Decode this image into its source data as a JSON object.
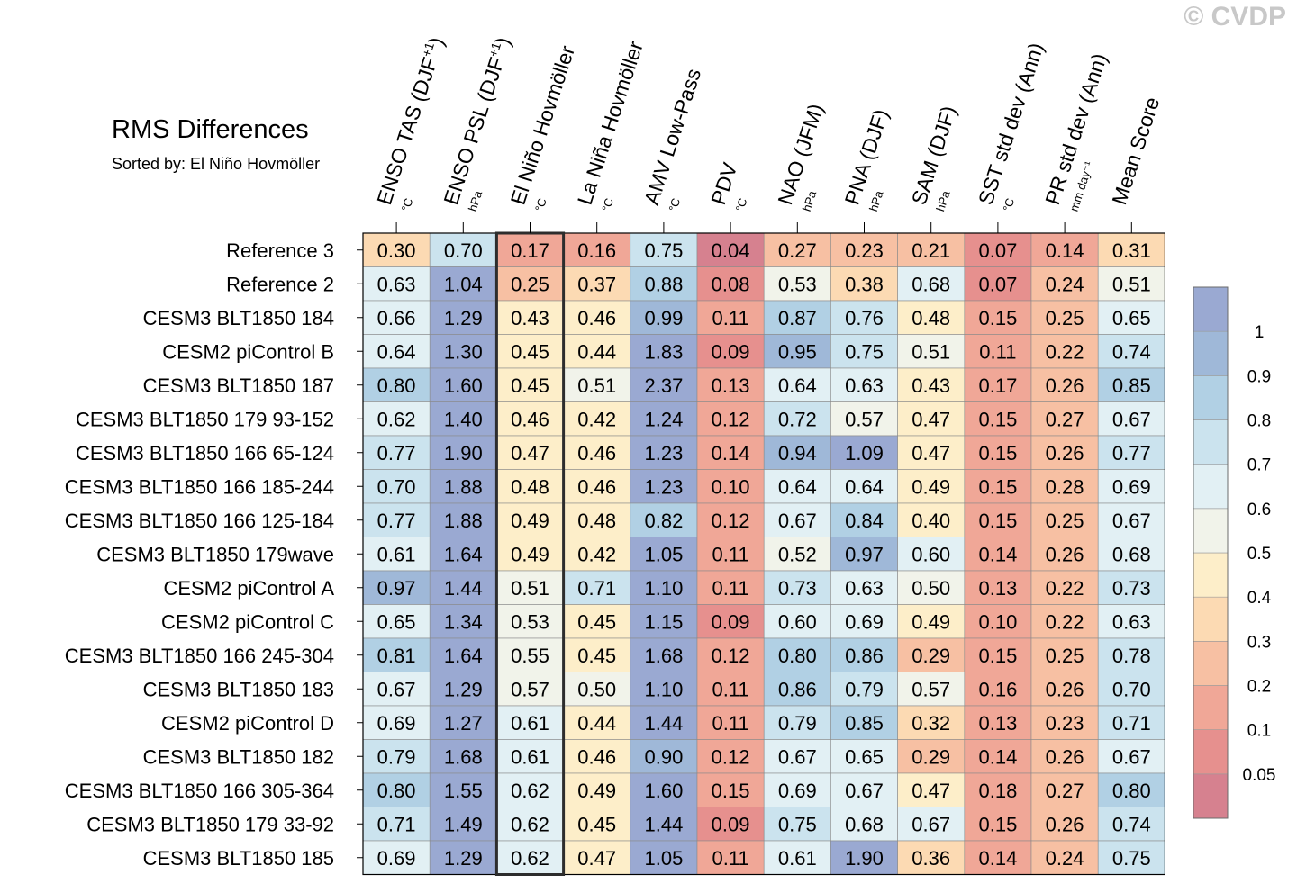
{
  "watermark": "© CVDP",
  "chart_data": {
    "type": "heatmap",
    "title": "RMS Differences",
    "subtitle": "Sorted by: El Niño Hovmöller",
    "highlight_column": 2,
    "columns": [
      {
        "label": "ENSO TAS (DJF",
        "sup": "+1",
        "close": ")",
        "unit": "°C"
      },
      {
        "label": "ENSO PSL (DJF",
        "sup": "+1",
        "close": ")",
        "unit": "hPa"
      },
      {
        "label": "El Niño Hovmöller",
        "sup": "",
        "close": "",
        "unit": "°C"
      },
      {
        "label": "La Niña Hovmöller",
        "sup": "",
        "close": "",
        "unit": "°C"
      },
      {
        "label": "AMV Low-Pass",
        "sup": "",
        "close": "",
        "unit": "°C"
      },
      {
        "label": "PDV",
        "sup": "",
        "close": "",
        "unit": "°C"
      },
      {
        "label": "NAO (JFM)",
        "sup": "",
        "close": "",
        "unit": "hPa"
      },
      {
        "label": "PNA (DJF)",
        "sup": "",
        "close": "",
        "unit": "hPa"
      },
      {
        "label": "SAM (DJF)",
        "sup": "",
        "close": "",
        "unit": "hPa"
      },
      {
        "label": "SST std dev (Ann)",
        "sup": "",
        "close": "",
        "unit": "°C"
      },
      {
        "label": "PR std dev (Ann)",
        "sup": "",
        "close": "",
        "unit": "mm day⁻¹"
      },
      {
        "label": "Mean Score",
        "sup": "",
        "close": "",
        "unit": ""
      }
    ],
    "rows": [
      {
        "name": "Reference 3",
        "values": [
          0.3,
          0.7,
          0.17,
          0.16,
          0.75,
          0.04,
          0.27,
          0.23,
          0.21,
          0.07,
          0.14,
          0.31
        ]
      },
      {
        "name": "Reference 2",
        "values": [
          0.63,
          1.04,
          0.25,
          0.37,
          0.88,
          0.08,
          0.53,
          0.38,
          0.68,
          0.07,
          0.24,
          0.51
        ]
      },
      {
        "name": "CESM3 BLT1850 184",
        "values": [
          0.66,
          1.29,
          0.43,
          0.46,
          0.99,
          0.11,
          0.87,
          0.76,
          0.48,
          0.15,
          0.25,
          0.65
        ]
      },
      {
        "name": "CESM2 piControl B",
        "values": [
          0.64,
          1.3,
          0.45,
          0.44,
          1.83,
          0.09,
          0.95,
          0.75,
          0.51,
          0.11,
          0.22,
          0.74
        ]
      },
      {
        "name": "CESM3 BLT1850 187",
        "values": [
          0.8,
          1.6,
          0.45,
          0.51,
          2.37,
          0.13,
          0.64,
          0.63,
          0.43,
          0.17,
          0.26,
          0.85
        ]
      },
      {
        "name": "CESM3 BLT1850 179 93-152",
        "values": [
          0.62,
          1.4,
          0.46,
          0.42,
          1.24,
          0.12,
          0.72,
          0.57,
          0.47,
          0.15,
          0.27,
          0.67
        ]
      },
      {
        "name": "CESM3 BLT1850 166 65-124",
        "values": [
          0.77,
          1.9,
          0.47,
          0.46,
          1.23,
          0.14,
          0.94,
          1.09,
          0.47,
          0.15,
          0.26,
          0.77
        ]
      },
      {
        "name": "CESM3 BLT1850 166 185-244",
        "values": [
          0.7,
          1.88,
          0.48,
          0.46,
          1.23,
          0.1,
          0.64,
          0.64,
          0.49,
          0.15,
          0.28,
          0.69
        ]
      },
      {
        "name": "CESM3 BLT1850 166 125-184",
        "values": [
          0.77,
          1.88,
          0.49,
          0.48,
          0.82,
          0.12,
          0.67,
          0.84,
          0.4,
          0.15,
          0.25,
          0.67
        ]
      },
      {
        "name": "CESM3 BLT1850 179wave",
        "values": [
          0.61,
          1.64,
          0.49,
          0.42,
          1.05,
          0.11,
          0.52,
          0.97,
          0.6,
          0.14,
          0.26,
          0.68
        ]
      },
      {
        "name": "CESM2 piControl A",
        "values": [
          0.97,
          1.44,
          0.51,
          0.71,
          1.1,
          0.11,
          0.73,
          0.63,
          0.5,
          0.13,
          0.22,
          0.73
        ]
      },
      {
        "name": "CESM2 piControl C",
        "values": [
          0.65,
          1.34,
          0.53,
          0.45,
          1.15,
          0.09,
          0.6,
          0.69,
          0.49,
          0.1,
          0.22,
          0.63
        ]
      },
      {
        "name": "CESM3 BLT1850 166 245-304",
        "values": [
          0.81,
          1.64,
          0.55,
          0.45,
          1.68,
          0.12,
          0.8,
          0.86,
          0.29,
          0.15,
          0.25,
          0.78
        ]
      },
      {
        "name": "CESM3 BLT1850 183",
        "values": [
          0.67,
          1.29,
          0.57,
          0.5,
          1.1,
          0.11,
          0.86,
          0.79,
          0.57,
          0.16,
          0.26,
          0.7
        ]
      },
      {
        "name": "CESM2 piControl D",
        "values": [
          0.69,
          1.27,
          0.61,
          0.44,
          1.44,
          0.11,
          0.79,
          0.85,
          0.32,
          0.13,
          0.23,
          0.71
        ]
      },
      {
        "name": "CESM3 BLT1850 182",
        "values": [
          0.79,
          1.68,
          0.61,
          0.46,
          0.9,
          0.12,
          0.67,
          0.65,
          0.29,
          0.14,
          0.26,
          0.67
        ]
      },
      {
        "name": "CESM3 BLT1850 166 305-364",
        "values": [
          0.8,
          1.55,
          0.62,
          0.49,
          1.6,
          0.15,
          0.69,
          0.67,
          0.47,
          0.18,
          0.27,
          0.8
        ]
      },
      {
        "name": "CESM3 BLT1850 179 33-92",
        "values": [
          0.71,
          1.49,
          0.62,
          0.45,
          1.44,
          0.09,
          0.75,
          0.68,
          0.67,
          0.15,
          0.26,
          0.74
        ]
      },
      {
        "name": "CESM3 BLT1850 185",
        "values": [
          0.69,
          1.29,
          0.62,
          0.47,
          1.05,
          0.11,
          0.61,
          1.9,
          0.36,
          0.14,
          0.24,
          0.75
        ]
      }
    ],
    "colorbar": {
      "levels": [
        0.05,
        0.1,
        0.2,
        0.3,
        0.4,
        0.5,
        0.6,
        0.7,
        0.8,
        0.9,
        1
      ],
      "tick_labels": [
        "0.05",
        "0.1",
        "0.2",
        "0.3",
        "0.4",
        "0.5",
        "0.6",
        "0.7",
        "0.8",
        "0.9",
        "1"
      ],
      "colors": [
        "#d6818f",
        "#e6908e",
        "#f0a797",
        "#f7c0a3",
        "#fcdab3",
        "#fdeec9",
        "#f1f3ea",
        "#e2f0f4",
        "#cbe3ee",
        "#b1d0e4",
        "#9fb8d8",
        "#9aa9d2"
      ]
    }
  }
}
